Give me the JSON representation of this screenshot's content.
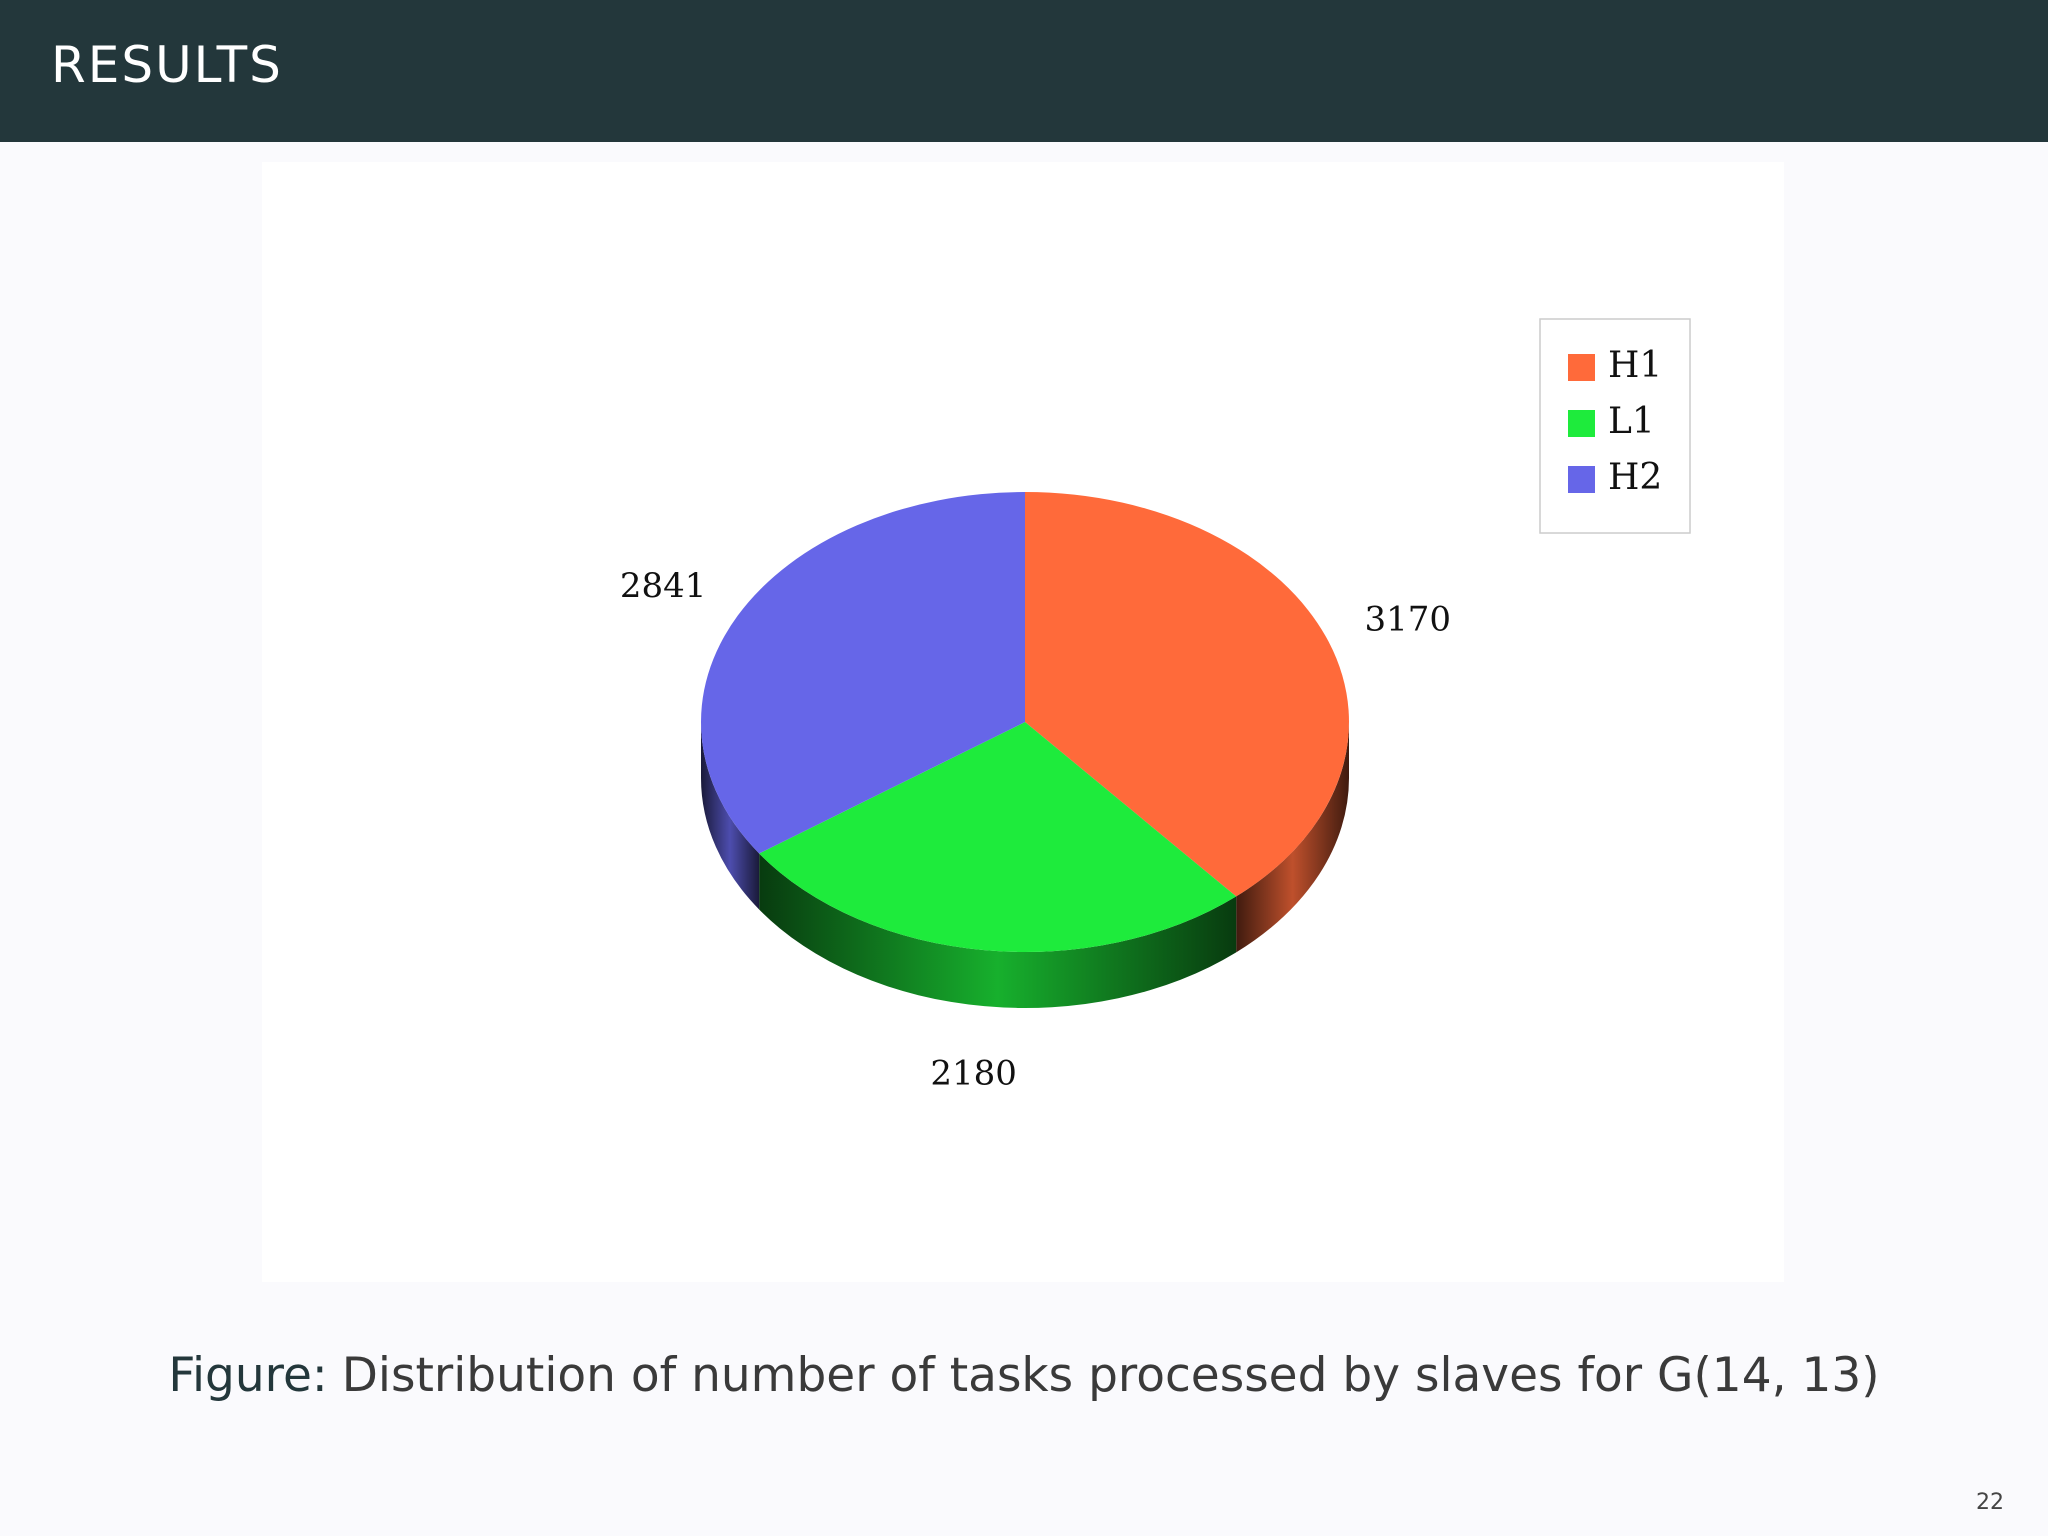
{
  "header": {
    "title": "RESULTS"
  },
  "chart_data": {
    "type": "pie",
    "style": "3d",
    "categories": [
      "H1",
      "L1",
      "H2"
    ],
    "values": [
      3170,
      2180,
      2841
    ],
    "data_labels": [
      "3170",
      "2180",
      "2841"
    ],
    "colors": [
      "#ff6a3a",
      "#1eeb3c",
      "#6666e8"
    ],
    "legend": {
      "placement": "top-right",
      "entries": [
        "H1",
        "L1",
        "H2"
      ]
    }
  },
  "caption": {
    "prefix": "Figure:",
    "text": "Distribution of number of tasks processed by slaves for G(14, 13)"
  },
  "page_number": "22"
}
